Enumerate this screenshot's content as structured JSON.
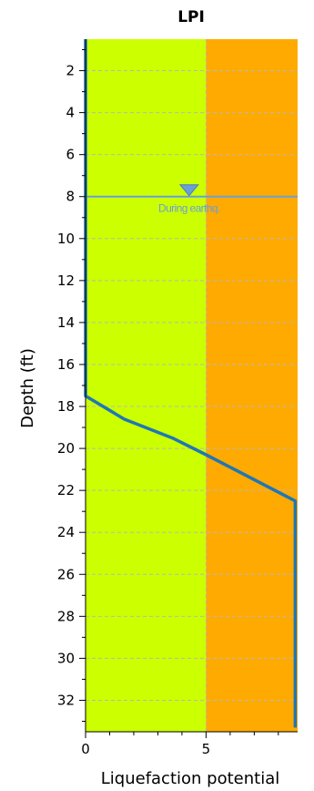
{
  "chart_data": {
    "type": "line",
    "title": "LPI",
    "xlabel": "Liquefaction potential",
    "ylabel": "Depth (ft)",
    "xlim": [
      0,
      8.8
    ],
    "ylim": [
      0.5,
      33.5
    ],
    "y_inverted": true,
    "xticks": [
      0,
      5
    ],
    "xtick_labels": [
      "0",
      "5"
    ],
    "yticks": [
      2,
      4,
      6,
      8,
      10,
      12,
      14,
      16,
      18,
      20,
      22,
      24,
      26,
      28,
      30,
      32
    ],
    "ytick_labels": [
      "2",
      "4",
      "6",
      "8",
      "10",
      "12",
      "14",
      "16",
      "18",
      "20",
      "22",
      "24",
      "26",
      "28",
      "30",
      "32"
    ],
    "grid": true,
    "zones": [
      {
        "x_from": 0,
        "x_to": 5,
        "color": "#ccff00"
      },
      {
        "x_from": 5,
        "x_to": 8.8,
        "color": "#ffaa00"
      }
    ],
    "series": [
      {
        "color": "#1f77b4",
        "x": [
          0,
          0,
          1.6,
          3.6,
          5.0,
          8.7,
          8.7
        ],
        "y": [
          0.5,
          17.5,
          18.6,
          19.5,
          20.3,
          22.5,
          33.3
        ]
      }
    ],
    "water_table": {
      "depth": 8,
      "x": 4.3,
      "label": "During earthq.",
      "color": "#6a9fd8"
    }
  }
}
